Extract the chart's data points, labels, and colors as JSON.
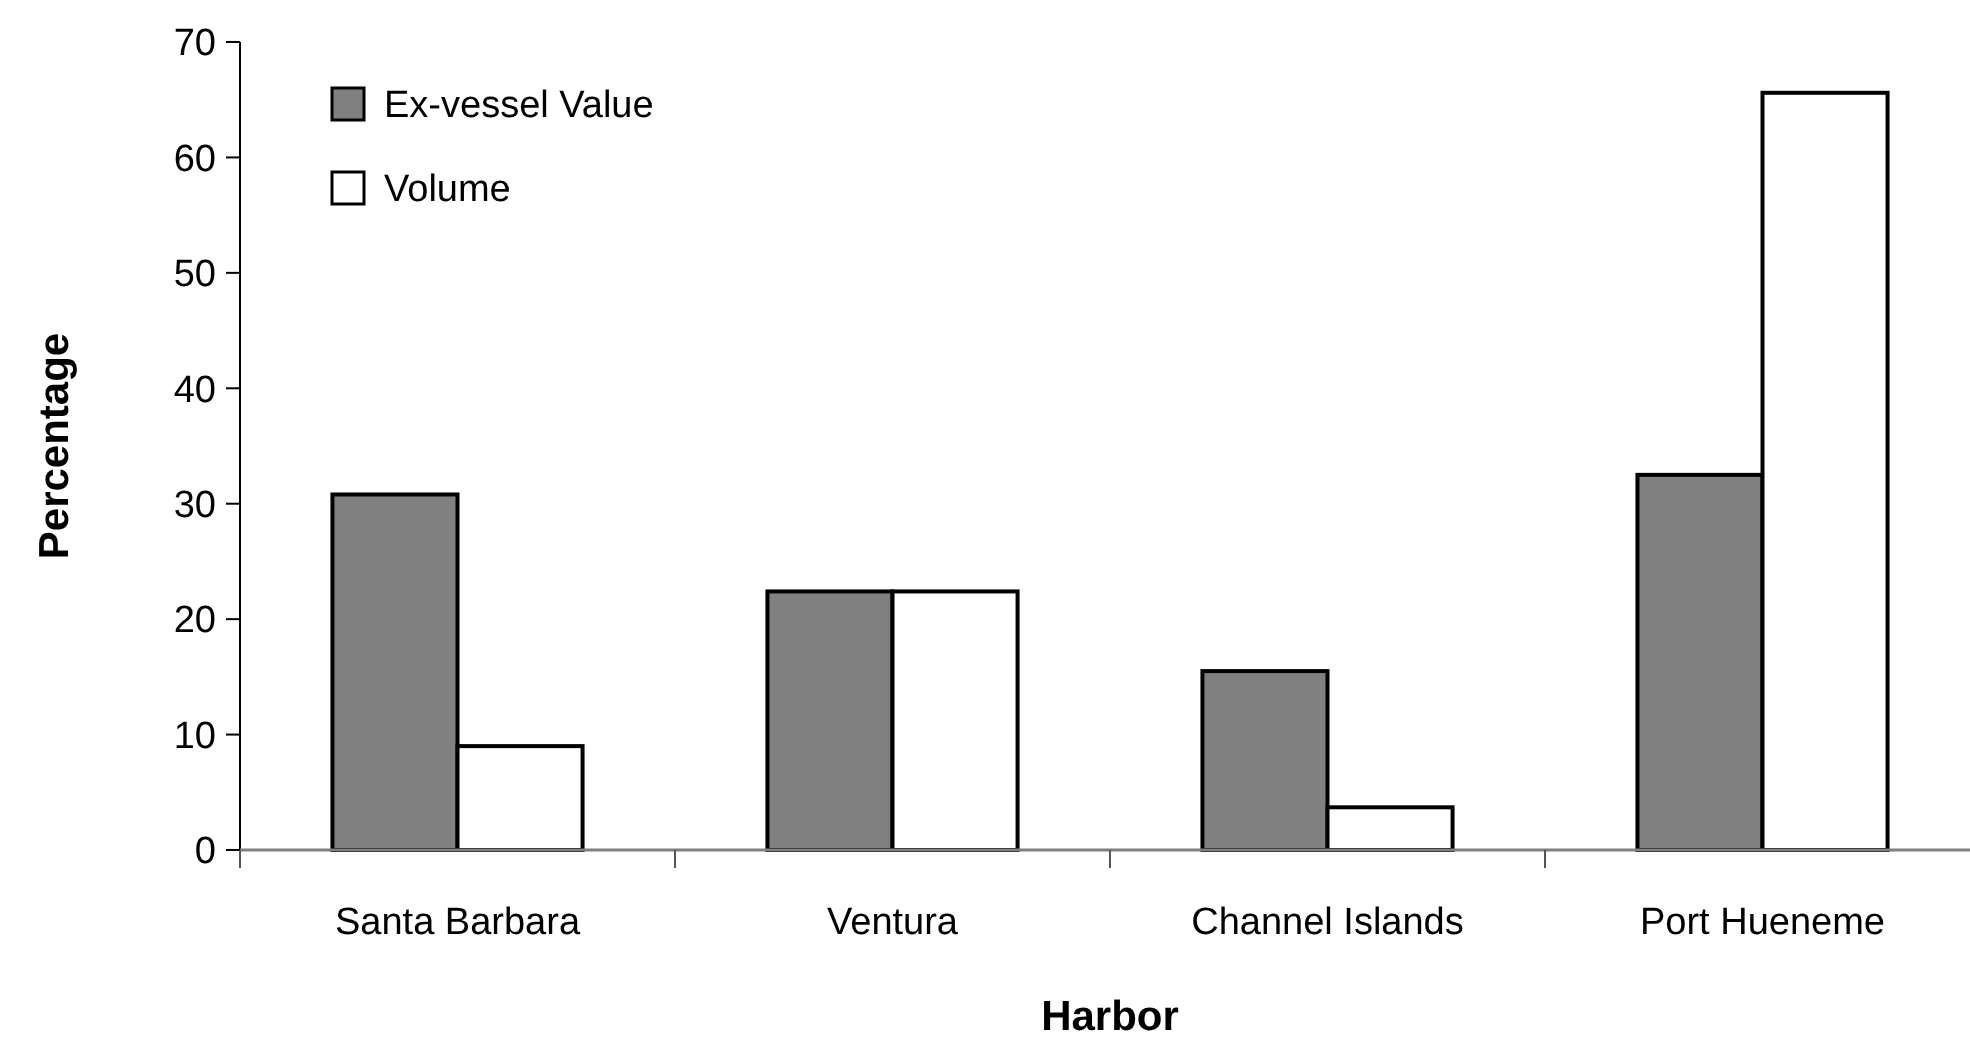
{
  "chart_data": {
    "type": "bar",
    "xlabel": "Harbor",
    "ylabel": "Percentage",
    "categories": [
      "Santa Barbara",
      "Ventura",
      "Channel Islands",
      "Port Hueneme"
    ],
    "series": [
      {
        "name": "Ex-vessel Value",
        "color": "#808080",
        "values": [
          30.8,
          22.4,
          15.5,
          32.5
        ]
      },
      {
        "name": "Volume",
        "color": "#ffffff",
        "values": [
          9,
          22.4,
          3.7,
          65.6
        ]
      }
    ],
    "ylim": [
      0,
      70
    ],
    "yticks": [
      0,
      10,
      20,
      30,
      40,
      50,
      60,
      70
    ],
    "grid": false,
    "legend": "top left"
  }
}
